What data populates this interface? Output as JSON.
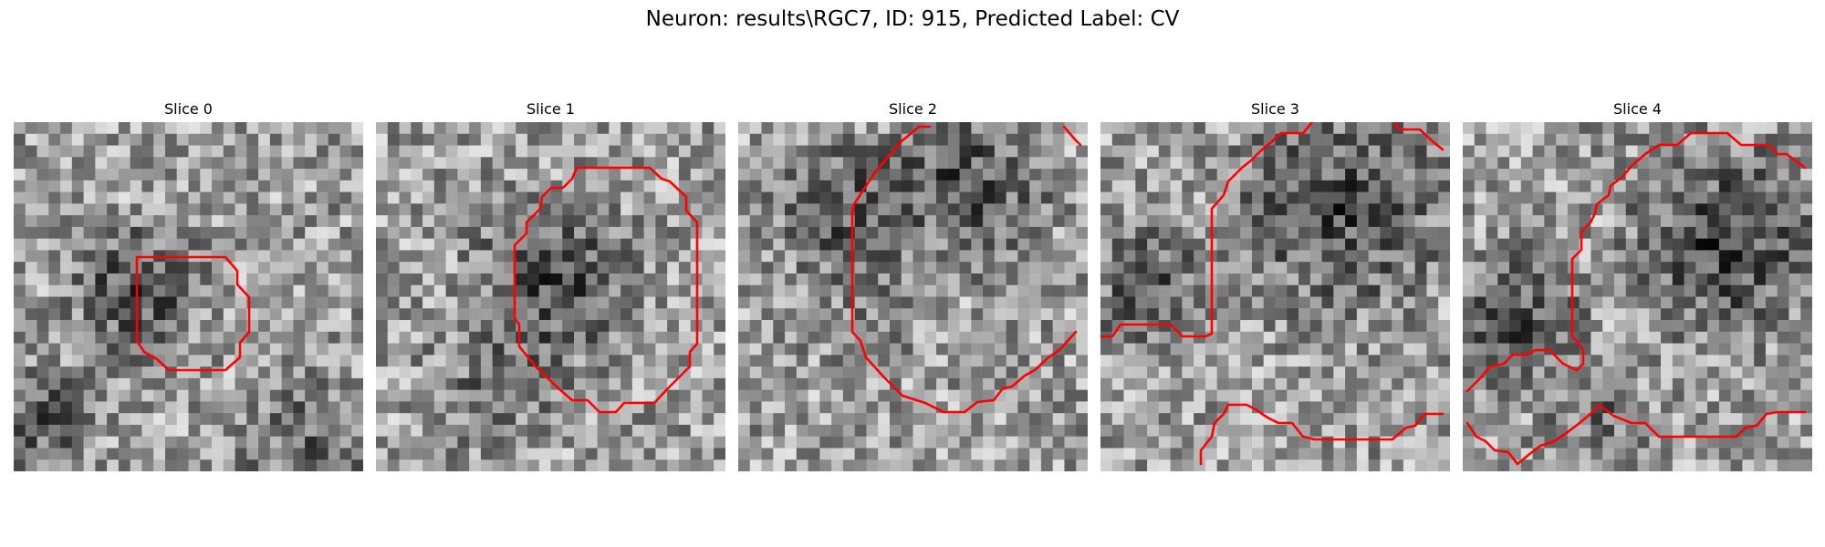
{
  "figure": {
    "title": "Neuron: results\\RGC7, ID: 915, Predicted Label: CV",
    "contour_color": "#ff0000"
  },
  "slices": [
    {
      "title": "Slice 0"
    },
    {
      "title": "Slice 1"
    },
    {
      "title": "Slice 2"
    },
    {
      "title": "Slice 3"
    },
    {
      "title": "Slice 4"
    }
  ]
}
